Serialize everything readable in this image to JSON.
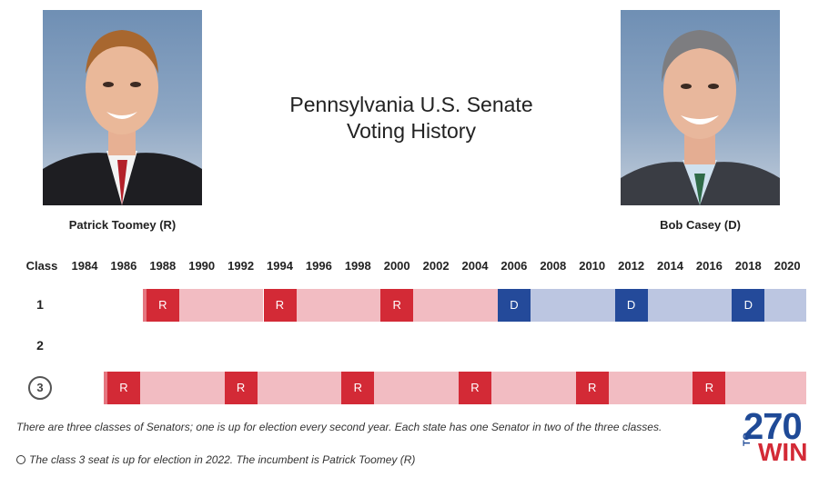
{
  "title_line1": "Pennsylvania U.S. Senate",
  "title_line2": "Voting History",
  "senators": {
    "left": {
      "name": "Patrick Toomey (R)"
    },
    "right": {
      "name": "Bob Casey (D)"
    }
  },
  "table": {
    "class_header": "Class",
    "years": [
      "1984",
      "1986",
      "1988",
      "1990",
      "1992",
      "1994",
      "1996",
      "1998",
      "2000",
      "2002",
      "2004",
      "2006",
      "2008",
      "2010",
      "2012",
      "2014",
      "2016",
      "2018",
      "2020"
    ],
    "rows": [
      {
        "label": "1",
        "elections": [
          {
            "year": 1988,
            "party": "R",
            "label": "R"
          },
          {
            "year": 1994,
            "party": "R",
            "label": "R"
          },
          {
            "year": 2000,
            "party": "R",
            "label": "R"
          },
          {
            "year": 2006,
            "party": "D",
            "label": "D"
          },
          {
            "year": 2012,
            "party": "D",
            "label": "D"
          },
          {
            "year": 2018,
            "party": "D",
            "label": "D"
          }
        ]
      },
      {
        "label": "2",
        "elections": []
      },
      {
        "label": "3",
        "elections": [
          {
            "year": 1986,
            "party": "R",
            "label": "R"
          },
          {
            "year": 1992,
            "party": "R",
            "label": "R"
          },
          {
            "year": 1998,
            "party": "R",
            "label": "R"
          },
          {
            "year": 2004,
            "party": "R",
            "label": "R"
          },
          {
            "year": 2010,
            "party": "R",
            "label": "R"
          },
          {
            "year": 2016,
            "party": "R",
            "label": "R"
          }
        ]
      }
    ]
  },
  "colors": {
    "republican": "#d32a36",
    "republican_light": "#f2bcc2",
    "democrat": "#244a9a",
    "democrat_light": "#bcc6e1"
  },
  "note1": "There are three classes of Senators; one is up for election every second year. Each state has one Senator in two of the three classes.",
  "note2": "The class 3 seat is up for election in 2022. The incumbent is Patrick Toomey (R)",
  "logo": {
    "number": "270",
    "to": "TO",
    "win": "WIN"
  }
}
